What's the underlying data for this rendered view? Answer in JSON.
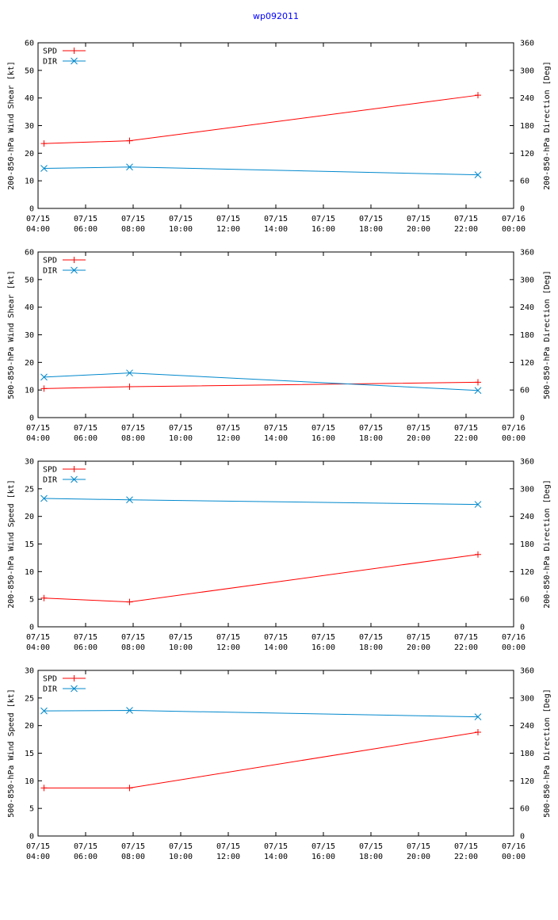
{
  "title": "wp092011",
  "colors": {
    "spd": "#ff0000",
    "dir": "#0088cc",
    "axis": "#000000",
    "title": "#0000ff"
  },
  "x_ticks": [
    [
      "07/15",
      "04:00"
    ],
    [
      "07/15",
      "06:00"
    ],
    [
      "07/15",
      "08:00"
    ],
    [
      "07/15",
      "10:00"
    ],
    [
      "07/15",
      "12:00"
    ],
    [
      "07/15",
      "14:00"
    ],
    [
      "07/15",
      "16:00"
    ],
    [
      "07/15",
      "18:00"
    ],
    [
      "07/15",
      "20:00"
    ],
    [
      "07/15",
      "22:00"
    ],
    [
      "07/16",
      "00:00"
    ]
  ],
  "chart_data": [
    {
      "type": "line",
      "ylabel": "200-850-hPa Wind Shear [kt]",
      "y2label": "200-850-hPa Direction [Deg]",
      "xlim": [
        4,
        24
      ],
      "ylim": [
        0,
        60
      ],
      "y2lim": [
        0,
        360
      ],
      "yticks": [
        0,
        10,
        20,
        30,
        40,
        50,
        60
      ],
      "y2ticks": [
        0,
        60,
        120,
        180,
        240,
        300,
        360
      ],
      "x": [
        4.25,
        7.85,
        22.5
      ],
      "series": [
        {
          "name": "SPD",
          "axis": "left",
          "marker": "plus",
          "values": [
            23.5,
            24.5,
            41
          ]
        },
        {
          "name": "DIR",
          "axis": "right",
          "marker": "x",
          "values": [
            87,
            90,
            73
          ]
        }
      ]
    },
    {
      "type": "line",
      "ylabel": "500-850-hPa Wind Shear [kt]",
      "y2label": "500-850-hPa Direction [Deg]",
      "xlim": [
        4,
        24
      ],
      "ylim": [
        0,
        60
      ],
      "y2lim": [
        0,
        360
      ],
      "yticks": [
        0,
        10,
        20,
        30,
        40,
        50,
        60
      ],
      "y2ticks": [
        0,
        60,
        120,
        180,
        240,
        300,
        360
      ],
      "x": [
        4.25,
        7.85,
        22.5
      ],
      "series": [
        {
          "name": "SPD",
          "axis": "left",
          "marker": "plus",
          "values": [
            10.5,
            11.2,
            12.8
          ]
        },
        {
          "name": "DIR",
          "axis": "right",
          "marker": "x",
          "values": [
            88,
            97,
            59
          ]
        }
      ]
    },
    {
      "type": "line",
      "ylabel": "200-850-hPa Wind Speed [kt]",
      "y2label": "200-850-hPa Direction [Deg]",
      "xlim": [
        4,
        24
      ],
      "ylim": [
        0,
        30
      ],
      "y2lim": [
        0,
        360
      ],
      "yticks": [
        0,
        5,
        10,
        15,
        20,
        25,
        30
      ],
      "y2ticks": [
        0,
        60,
        120,
        180,
        240,
        300,
        360
      ],
      "x": [
        4.25,
        7.85,
        22.5
      ],
      "series": [
        {
          "name": "SPD",
          "axis": "left",
          "marker": "plus",
          "values": [
            5.2,
            4.5,
            13.1
          ]
        },
        {
          "name": "DIR",
          "axis": "right",
          "marker": "x",
          "values": [
            279,
            276,
            266
          ]
        }
      ]
    },
    {
      "type": "line",
      "ylabel": "500-850-hPa Wind Speed [kt]",
      "y2label": "500-850-hPa Direction [Deg]",
      "xlim": [
        4,
        24
      ],
      "ylim": [
        0,
        30
      ],
      "y2lim": [
        0,
        360
      ],
      "yticks": [
        0,
        5,
        10,
        15,
        20,
        25,
        30
      ],
      "y2ticks": [
        0,
        60,
        120,
        180,
        240,
        300,
        360
      ],
      "x": [
        4.25,
        7.85,
        22.5
      ],
      "series": [
        {
          "name": "SPD",
          "axis": "left",
          "marker": "plus",
          "values": [
            8.7,
            8.7,
            18.8
          ]
        },
        {
          "name": "DIR",
          "axis": "right",
          "marker": "x",
          "values": [
            272,
            273,
            259
          ]
        }
      ]
    }
  ]
}
